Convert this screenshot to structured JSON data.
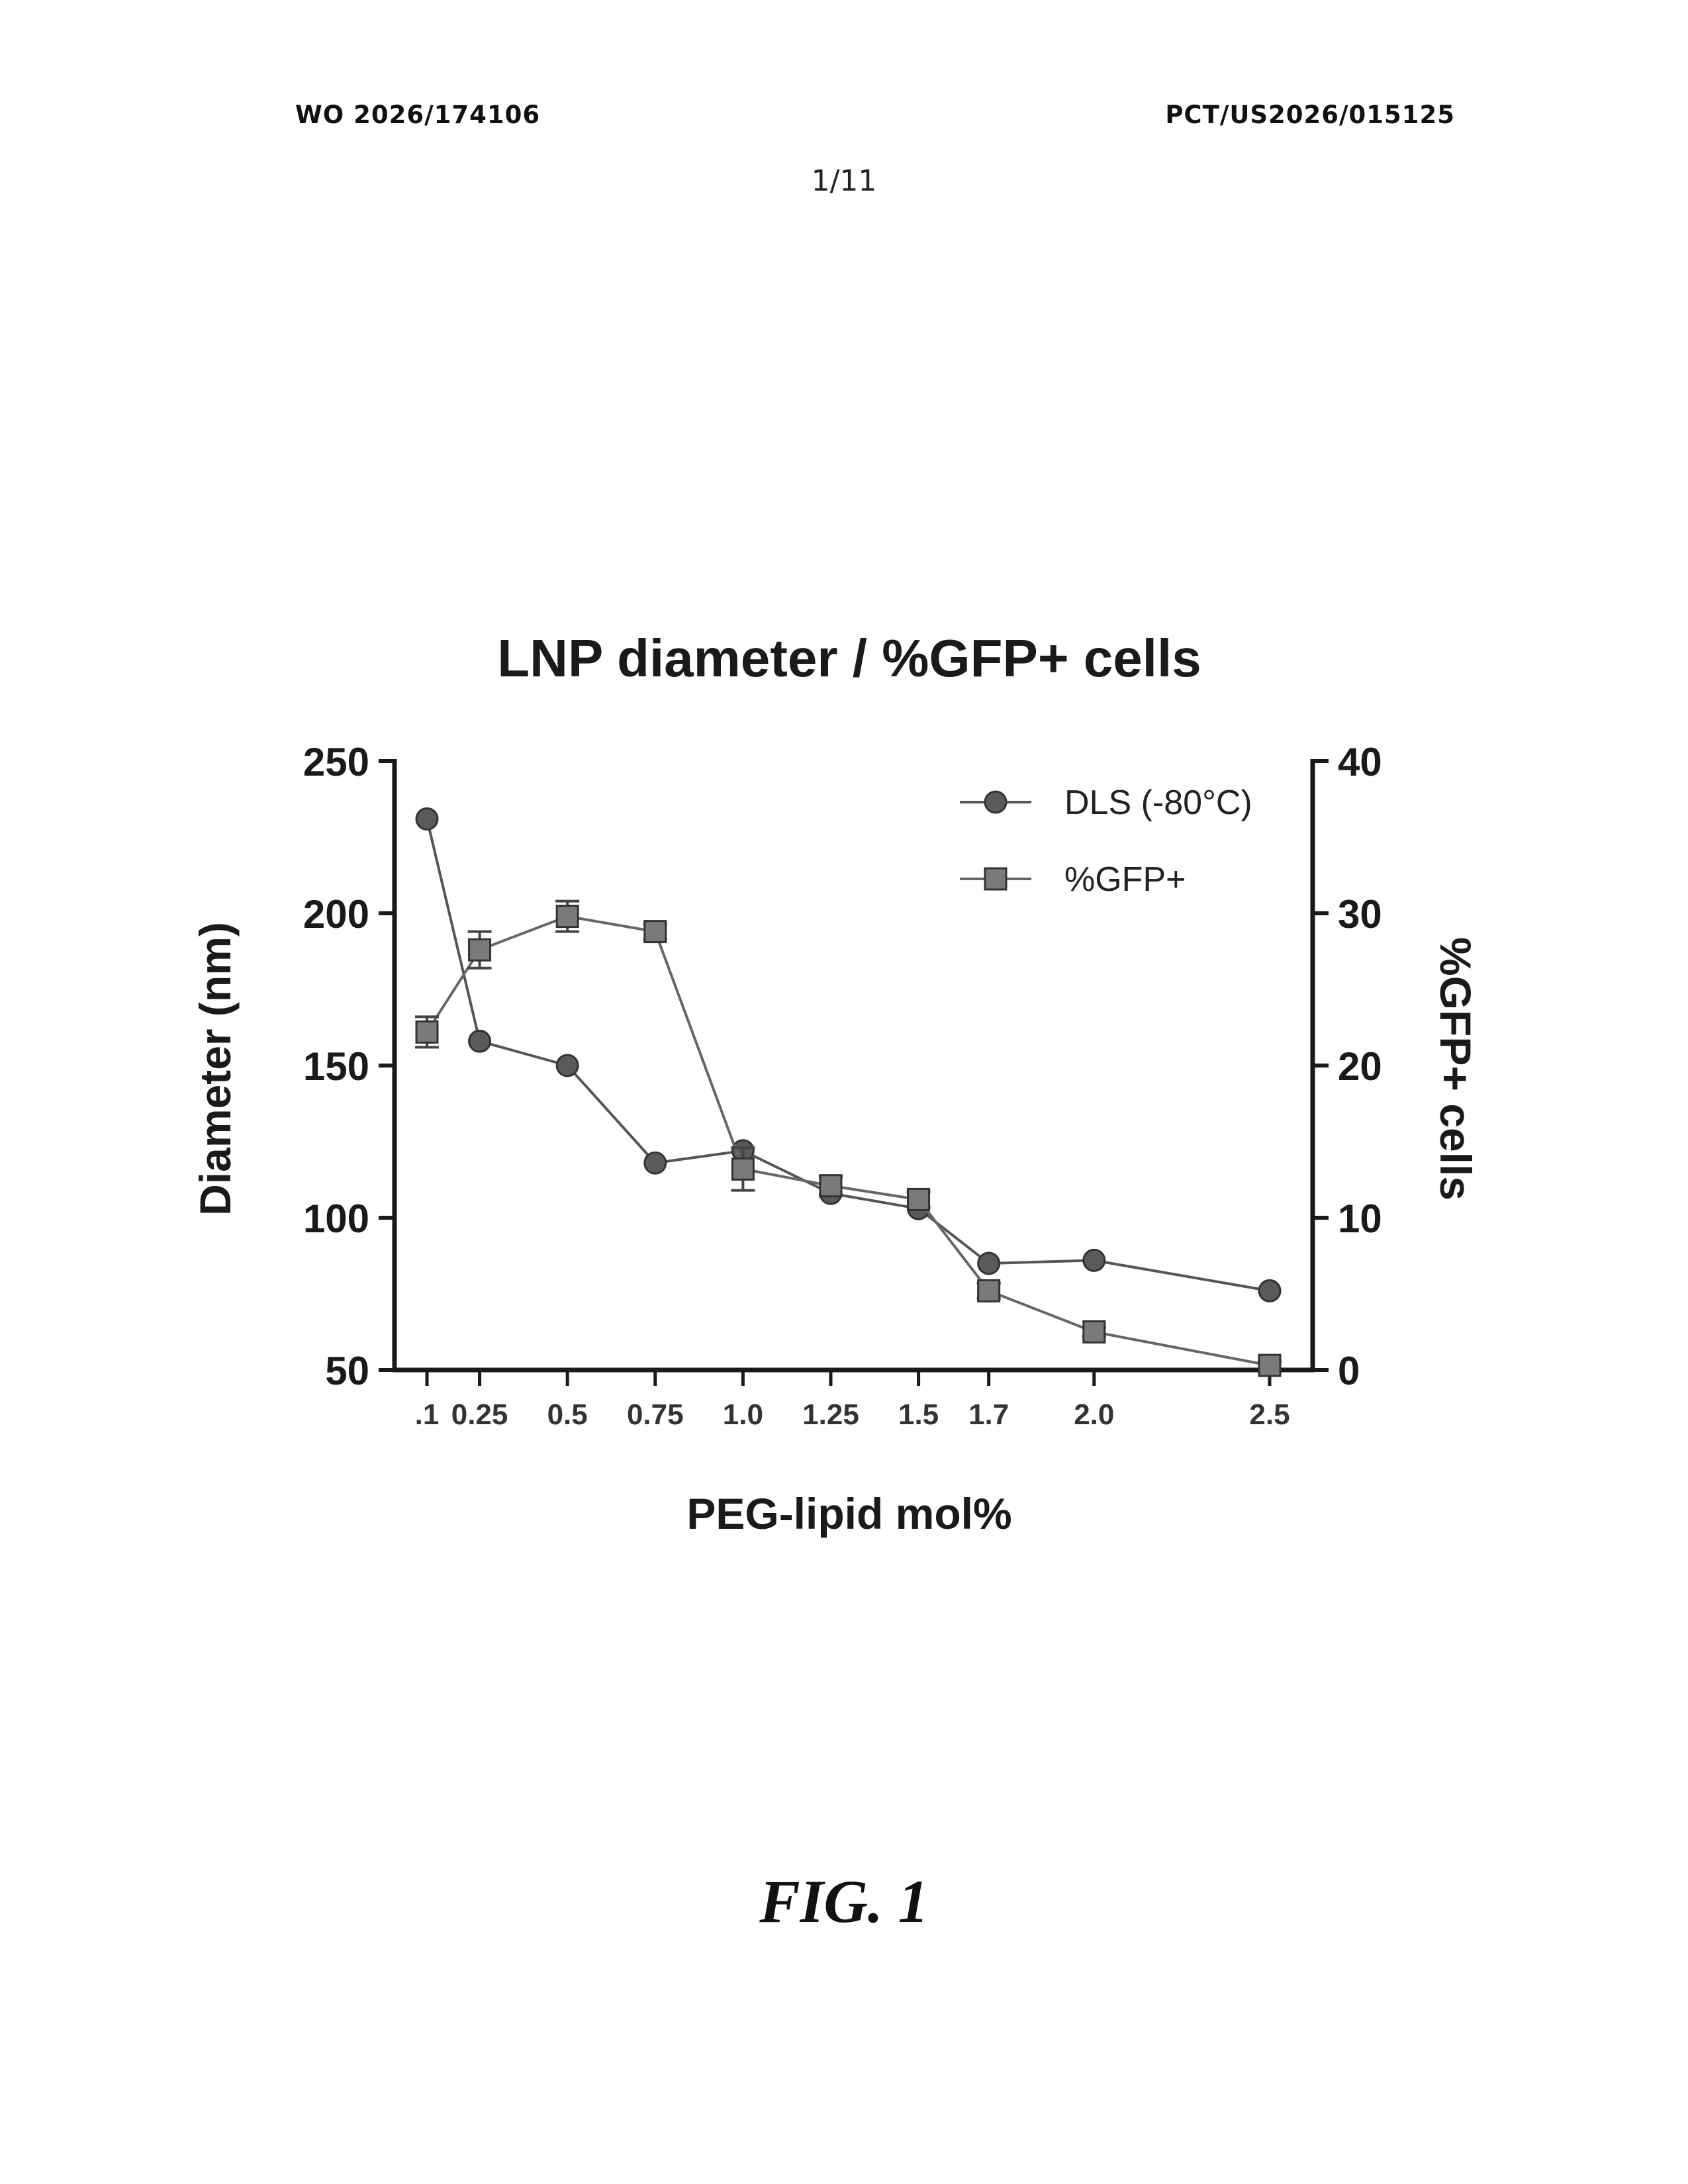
{
  "header": {
    "publication_number": "WO 2026/174106",
    "application_number": "PCT/US2026/015125",
    "sheet_number": "1/11"
  },
  "figure_label": "FIG. 1",
  "chart_data": {
    "type": "line",
    "title": "LNP diameter / %GFP+ cells",
    "xlabel": "PEG-lipid mol%",
    "ylabel": "Diameter (nm)",
    "y2label": "%GFP+ cells",
    "ylim": [
      50,
      250
    ],
    "y2lim": [
      0,
      40
    ],
    "yticks": [
      "50",
      "100",
      "150",
      "200",
      "250"
    ],
    "y2ticks": [
      "0",
      "10",
      "20",
      "30",
      "40"
    ],
    "x": [
      0.1,
      0.25,
      0.5,
      0.75,
      1.0,
      1.25,
      1.5,
      1.7,
      2.0,
      2.5
    ],
    "xtick_labels": [
      ".1",
      "0.25",
      "0.5",
      "0.75",
      "1.0",
      "1.25",
      "1.5",
      "1.7",
      "2.0",
      "2.5"
    ],
    "legend_position": "top-right",
    "grid": false,
    "series": [
      {
        "name": "DLS (-80°C)",
        "axis": "left",
        "marker": "circle",
        "values": [
          231,
          158,
          150,
          118,
          122,
          108,
          103,
          85,
          86,
          76
        ],
        "error": [
          0,
          0,
          0,
          0,
          0,
          0,
          0,
          0,
          0,
          0
        ]
      },
      {
        "name": "%GFP+",
        "axis": "right",
        "marker": "square",
        "values": [
          22.2,
          27.6,
          29.8,
          28.8,
          13.2,
          12.1,
          11.2,
          5.2,
          2.5,
          0.3
        ],
        "error": [
          1.0,
          1.2,
          1.0,
          0.5,
          1.4,
          0.6,
          0.5,
          0.5,
          0.3,
          0.3
        ]
      }
    ]
  }
}
